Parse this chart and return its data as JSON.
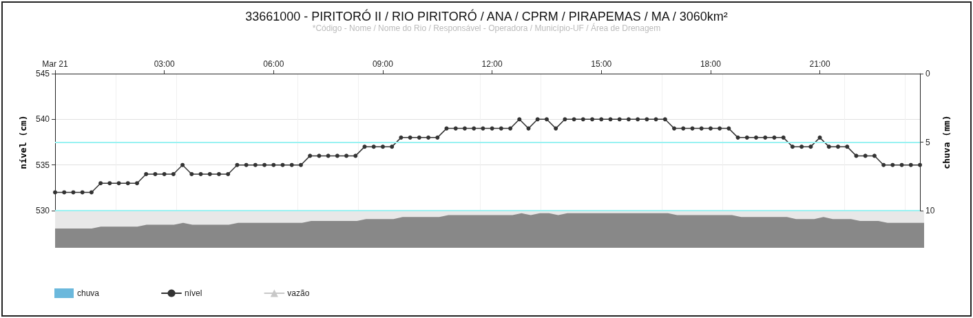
{
  "chart_data": {
    "type": "line",
    "title": "33661000 - PIRITORÓ II / RIO PIRITORÓ / ANA / CPRM / PIRAPEMAS / MA / 3060km²",
    "subtitle": "*Código - Nome / Nome do Rio / Responsável - Operadora / Município-UF / Área de Drenagem",
    "ylabel": "nível (cm)",
    "y2label": "chuva (mm)",
    "x": [
      0,
      0.25,
      0.5,
      0.75,
      1,
      1.25,
      1.5,
      1.75,
      2,
      2.25,
      2.5,
      2.75,
      3,
      3.25,
      3.5,
      3.75,
      4,
      4.25,
      4.5,
      4.75,
      5,
      5.25,
      5.5,
      5.75,
      6,
      6.25,
      6.5,
      6.75,
      7,
      7.25,
      7.5,
      7.75,
      8,
      8.25,
      8.5,
      8.75,
      9,
      9.25,
      9.5,
      9.75,
      10,
      10.25,
      10.5,
      10.75,
      11,
      11.25,
      11.5,
      11.75,
      12,
      12.25,
      12.5,
      12.75,
      13,
      13.25,
      13.5,
      13.75,
      14,
      14.25,
      14.5,
      14.75,
      15,
      15.25,
      15.5,
      15.75,
      16,
      16.25,
      16.5,
      16.75,
      17,
      17.25,
      17.5,
      17.75,
      18,
      18.25,
      18.5,
      18.75,
      19,
      19.25,
      19.5,
      19.75,
      20,
      20.25,
      20.5,
      20.75,
      21,
      21.25,
      21.5,
      21.75,
      22,
      22.25,
      22.5,
      22.75,
      23,
      23.25,
      23.5,
      23.75
    ],
    "series": [
      {
        "name": "chuva",
        "type": "bar",
        "color": "#6bb8dc",
        "values": [
          null,
          null,
          null,
          null,
          null,
          null,
          null,
          null,
          null,
          null,
          null,
          null,
          null,
          null,
          null,
          null,
          null,
          null,
          null,
          null,
          null,
          null,
          null,
          null,
          null,
          null,
          null,
          null,
          null,
          null,
          null,
          null,
          null,
          null,
          null,
          null,
          null,
          null,
          null,
          null,
          null,
          null,
          null,
          null,
          null,
          null,
          null,
          null,
          null,
          null,
          null,
          null,
          null,
          null,
          null,
          null,
          null,
          null,
          null,
          null,
          null,
          null,
          null,
          null,
          null,
          null,
          null,
          null,
          null,
          null,
          null,
          null,
          null,
          null,
          null,
          null,
          null,
          null,
          null,
          null,
          null,
          null,
          null,
          null,
          null,
          null,
          null,
          null,
          null,
          null,
          null,
          null,
          null,
          null,
          null,
          null
        ]
      },
      {
        "name": "nível",
        "color": "#333333",
        "values": [
          532,
          532,
          532,
          532,
          532,
          533,
          533,
          533,
          533,
          533,
          534,
          534,
          534,
          534,
          535,
          534,
          534,
          534,
          534,
          534,
          535,
          535,
          535,
          535,
          535,
          535,
          535,
          535,
          536,
          536,
          536,
          536,
          536,
          536,
          537,
          537,
          537,
          537,
          538,
          538,
          538,
          538,
          538,
          539,
          539,
          539,
          539,
          539,
          539,
          539,
          539,
          540,
          539,
          540,
          540,
          539,
          540,
          540,
          540,
          540,
          540,
          540,
          540,
          540,
          540,
          540,
          540,
          540,
          539,
          539,
          539,
          539,
          539,
          539,
          539,
          538,
          538,
          538,
          538,
          538,
          538,
          537,
          537,
          537,
          538,
          537,
          537,
          537,
          536,
          536,
          536,
          535,
          535,
          535,
          535,
          535
        ]
      },
      {
        "name": "vazão",
        "type": "line",
        "marker": "triangle",
        "color": "#c8c8c8",
        "values": [
          null,
          null,
          null,
          null,
          null,
          null,
          null,
          null,
          null,
          null,
          null,
          null,
          null,
          null,
          null,
          null,
          null,
          null,
          null,
          null,
          null,
          null,
          null,
          null,
          null,
          null,
          null,
          null,
          null,
          null,
          null,
          null,
          null,
          null,
          null,
          null,
          null,
          null,
          null,
          null,
          null,
          null,
          null,
          null,
          null,
          null,
          null,
          null,
          null,
          null,
          null,
          null,
          null,
          null,
          null,
          null,
          null,
          null,
          null,
          null,
          null,
          null,
          null,
          null,
          null,
          null,
          null,
          null,
          null,
          null,
          null,
          null,
          null,
          null,
          null,
          null,
          null,
          null,
          null,
          null,
          null,
          null,
          null,
          null,
          null,
          null,
          null,
          null,
          null,
          null,
          null,
          null,
          null,
          null,
          null,
          null
        ]
      }
    ],
    "xlim": [
      0,
      23.75
    ],
    "xticks": [
      {
        "value": 0,
        "label": "Mar 21"
      },
      {
        "value": 3,
        "label": "03:00"
      },
      {
        "value": 6,
        "label": "06:00"
      },
      {
        "value": 9,
        "label": "09:00"
      },
      {
        "value": 12,
        "label": "12:00"
      },
      {
        "value": 15,
        "label": "15:00"
      },
      {
        "value": 18,
        "label": "18:00"
      },
      {
        "value": 21,
        "label": "21:00"
      }
    ],
    "ylim": [
      530,
      545
    ],
    "yticks": [
      530,
      535,
      540,
      545
    ],
    "y2lim": [
      10,
      0
    ],
    "y2ticks": [
      0,
      5,
      10
    ],
    "ref_lines": [
      {
        "axis": "y2",
        "value": 5,
        "color": "#99f2f2"
      },
      {
        "axis": "y2",
        "value": 10,
        "color": "#99f2f2"
      }
    ],
    "grid": true,
    "legend": "bottom",
    "marker": "circle",
    "line_style": "solid"
  }
}
